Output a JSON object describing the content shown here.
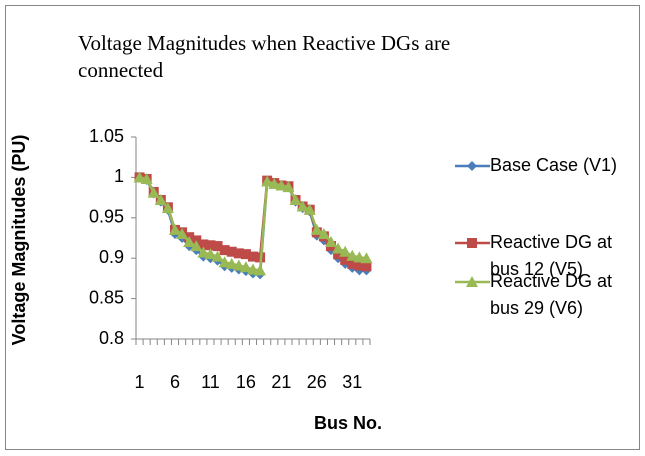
{
  "chart_data": {
    "type": "line",
    "title": "Voltage Magnitudes when Reactive DGs are connected",
    "x_label": "Bus No.",
    "y_label": "Voltage Magnitudes (PU)",
    "categories": [
      1,
      null,
      null,
      null,
      null,
      6,
      null,
      null,
      null,
      null,
      11,
      null,
      null,
      null,
      null,
      16,
      null,
      null,
      null,
      null,
      21,
      null,
      null,
      null,
      null,
      26,
      null,
      null,
      null,
      null,
      31,
      null,
      null
    ],
    "series": [
      {
        "name": "Base Case (V1)",
        "color": "#4a7ebb",
        "marker": "diamond",
        "values": [
          1,
          0.997,
          0.98,
          0.97,
          0.96,
          0.93,
          0.925,
          0.915,
          0.91,
          0.902,
          0.9,
          0.897,
          0.89,
          0.888,
          0.886,
          0.884,
          0.881,
          0.88,
          0.995,
          0.992,
          0.99,
          0.988,
          0.97,
          0.962,
          0.958,
          0.928,
          0.922,
          0.91,
          0.9,
          0.893,
          0.888,
          0.885,
          0.885
        ]
      },
      {
        "name": "Reactive DG at bus 12 (V5)",
        "color": "#be4b48",
        "marker": "square",
        "values": [
          1,
          0.998,
          0.982,
          0.972,
          0.963,
          0.935,
          0.932,
          0.926,
          0.922,
          0.917,
          0.916,
          0.915,
          0.91,
          0.908,
          0.906,
          0.905,
          0.902,
          0.901,
          0.996,
          0.993,
          0.99,
          0.989,
          0.972,
          0.964,
          0.96,
          0.932,
          0.927,
          0.915,
          0.905,
          0.898,
          0.893,
          0.891,
          0.89
        ]
      },
      {
        "name": "Reactive DG at bus 29 (V6)",
        "color": "#98b954",
        "marker": "triangle",
        "values": [
          1,
          0.998,
          0.981,
          0.972,
          0.962,
          0.935,
          0.93,
          0.92,
          0.915,
          0.907,
          0.905,
          0.902,
          0.895,
          0.893,
          0.891,
          0.889,
          0.886,
          0.885,
          0.995,
          0.992,
          0.99,
          0.988,
          0.972,
          0.964,
          0.96,
          0.935,
          0.93,
          0.92,
          0.912,
          0.908,
          0.903,
          0.901,
          0.9
        ]
      }
    ],
    "ylim": [
      0.8,
      1.05
    ],
    "yticks": [
      0.8,
      0.85,
      0.9,
      0.95,
      1,
      1.05
    ],
    "grid": false,
    "legend": "right"
  }
}
